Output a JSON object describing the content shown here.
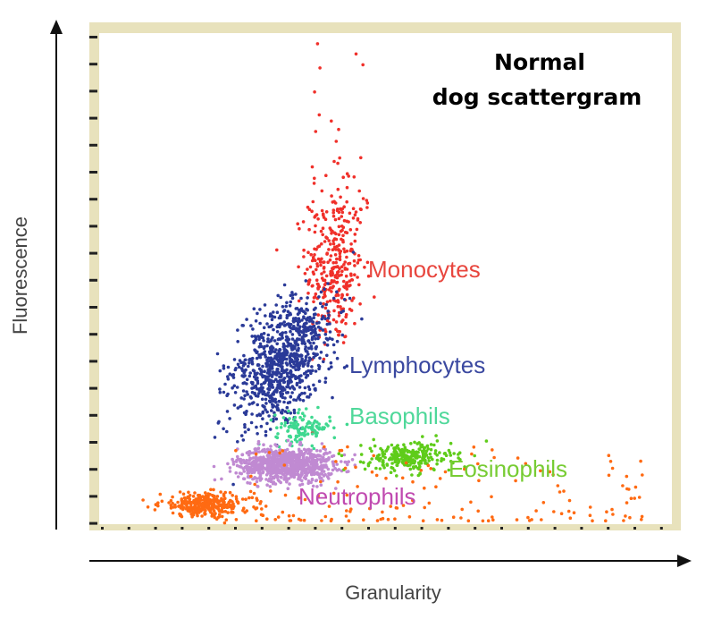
{
  "chart_data": {
    "type": "scatter",
    "title_lines": [
      "Normal",
      "dog scattergram"
    ],
    "xlabel": "Granularity",
    "ylabel": "Fluorescence",
    "xlim": [
      0,
      100
    ],
    "ylim": [
      0,
      100
    ],
    "grid": false,
    "series": [
      {
        "name": "Monocytes",
        "color": "#f0302a",
        "label_color": "#e8463e",
        "center": [
          41,
          52
        ],
        "spread": [
          2.5,
          8
        ],
        "tilt": 0,
        "count": 320,
        "tail": {
          "count": 40,
          "y_range": [
            62,
            100
          ],
          "x_range": [
            36,
            47
          ]
        }
      },
      {
        "name": "Lymphocytes",
        "color": "#2a3a98",
        "label_color": "#3a48a0",
        "center": [
          32,
          33
        ],
        "spread": [
          3.8,
          6.5
        ],
        "tilt": 0.45,
        "count": 900
      },
      {
        "name": "Basophils",
        "color": "#3fd890",
        "label_color": "#4fd89a",
        "center": [
          35.5,
          19.5
        ],
        "spread": [
          2.4,
          1.6
        ],
        "tilt": 0,
        "count": 120
      },
      {
        "name": "Neutrophils",
        "color": "#c08ad2",
        "label_color": "#c04ab0",
        "center": [
          32.5,
          12
        ],
        "spread": [
          4.2,
          1.7
        ],
        "tilt": 0,
        "count": 900
      },
      {
        "name": "Eosinophils",
        "color": "#5fcc1a",
        "label_color": "#77cc33",
        "center": [
          54,
          13.5
        ],
        "spread": [
          3.8,
          1.5
        ],
        "tilt": -0.1,
        "count": 260
      },
      {
        "name": "",
        "color": "#ff6a12",
        "label_color": "#ff6a12",
        "center": [
          18.5,
          3.8
        ],
        "spread": [
          4,
          1.2
        ],
        "tilt": 0.1,
        "count": 300,
        "tail": {
          "count": 160,
          "y_range": [
            0.5,
            16
          ],
          "x_range": [
            22,
            95
          ]
        }
      }
    ]
  }
}
